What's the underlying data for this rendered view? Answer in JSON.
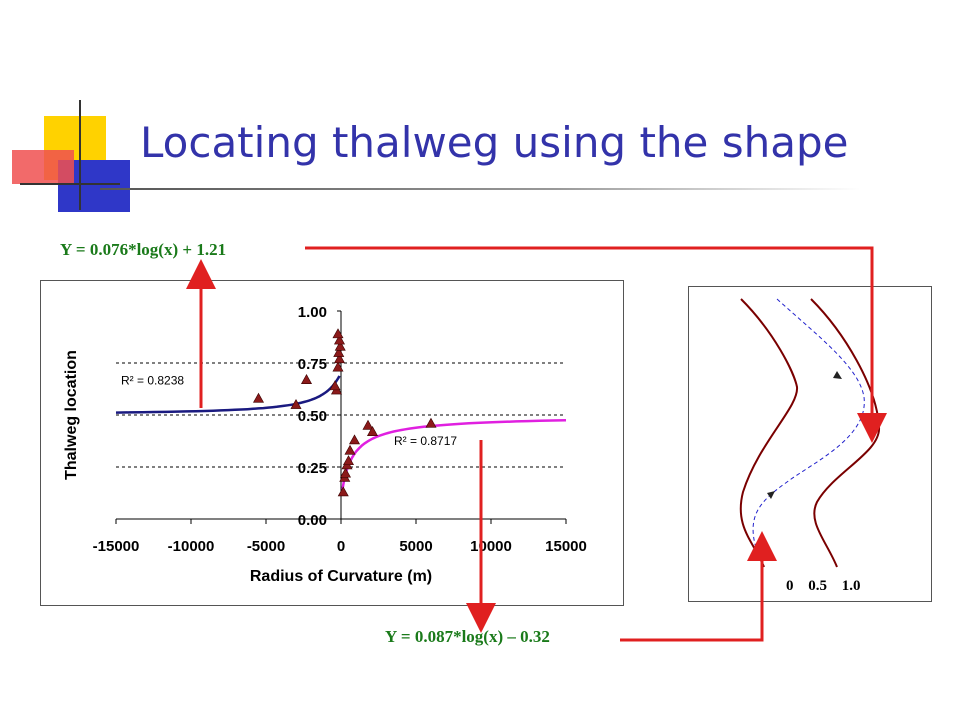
{
  "slide": {
    "title": "Locating thalweg using the shape",
    "equation_left": "Y = 0.076*log(x) + 1.21",
    "equation_right": "Y = 0.087*log(x) – 0.32",
    "colors": {
      "title": "#3333aa",
      "equation": "#1a7a1a",
      "arrow": "#e02020"
    }
  },
  "chart_data": {
    "type": "scatter",
    "xlabel": "Radius of Curvature (m)",
    "ylabel": "Thalweg location",
    "xlim": [
      -15000,
      15000
    ],
    "ylim": [
      0,
      1
    ],
    "xticks": [
      "-15000",
      "-10000",
      "-5000",
      "0",
      "5000",
      "10000",
      "15000"
    ],
    "yticks": [
      "0.00",
      "0.25",
      "0.50",
      "0.75",
      "1.00"
    ],
    "grid": "horizontal dashed",
    "series": [
      {
        "marker": "triangle",
        "color": "#8b1a1a",
        "points": [
          {
            "x": -5500,
            "y": 0.58
          },
          {
            "x": -2300,
            "y": 0.67
          },
          {
            "x": -3000,
            "y": 0.55
          },
          {
            "x": -300,
            "y": 0.62
          },
          {
            "x": -400,
            "y": 0.64
          },
          {
            "x": -200,
            "y": 0.73
          },
          {
            "x": -100,
            "y": 0.77
          },
          {
            "x": -150,
            "y": 0.8
          },
          {
            "x": -50,
            "y": 0.83
          },
          {
            "x": -100,
            "y": 0.86
          },
          {
            "x": -200,
            "y": 0.89
          },
          {
            "x": 150,
            "y": 0.13
          },
          {
            "x": 250,
            "y": 0.2
          },
          {
            "x": 300,
            "y": 0.22
          },
          {
            "x": 400,
            "y": 0.26
          },
          {
            "x": 500,
            "y": 0.28
          },
          {
            "x": 600,
            "y": 0.33
          },
          {
            "x": 900,
            "y": 0.38
          },
          {
            "x": 1800,
            "y": 0.45
          },
          {
            "x": 2100,
            "y": 0.42
          },
          {
            "x": 6000,
            "y": 0.46
          }
        ]
      }
    ],
    "fits": [
      {
        "color": "#1a1a80",
        "domain": [
          -15000,
          -100
        ],
        "r2_label": "R² = 0.8238",
        "r2_at": {
          "x": -15000,
          "y": 0.67
        }
      },
      {
        "color": "#e020e0",
        "domain": [
          100,
          15000
        ],
        "r2_label": "R² = 0.8717",
        "r2_at": {
          "x": 3200,
          "y": 0.38
        }
      }
    ]
  },
  "diagram": {
    "labels": [
      "0",
      "0.5",
      "1.0"
    ],
    "bank_color": "#7a0000",
    "thalweg_color": "#2222cc"
  }
}
